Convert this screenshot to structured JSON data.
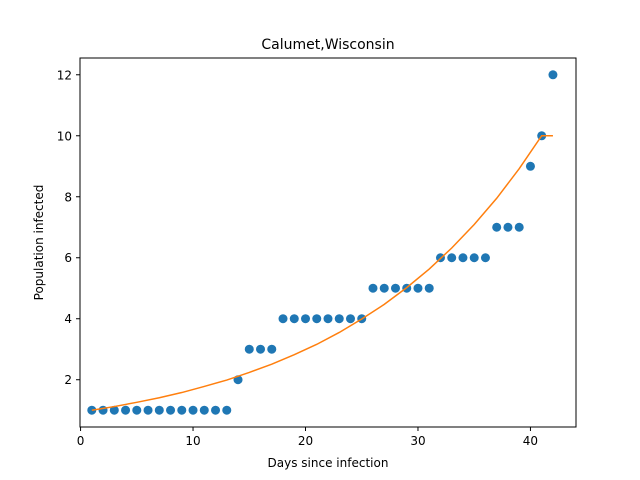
{
  "chart_data": {
    "type": "scatter",
    "title": "Calumet,Wisconsin",
    "xlabel": "Days since infection",
    "ylabel": "Population infected",
    "xlim": [
      -0.05,
      44.05
    ],
    "ylim": [
      0.45,
      12.55
    ],
    "xticks": [
      0,
      10,
      20,
      30,
      40
    ],
    "yticks": [
      2,
      4,
      6,
      8,
      10,
      12
    ],
    "grid": false,
    "series": [
      {
        "kind": "scatter",
        "color": "#1f77b4",
        "x": [
          1,
          2,
          3,
          4,
          5,
          6,
          7,
          8,
          9,
          10,
          11,
          12,
          13,
          14,
          15,
          16,
          17,
          18,
          19,
          20,
          21,
          22,
          23,
          24,
          25,
          26,
          27,
          28,
          29,
          30,
          31,
          32,
          33,
          34,
          35,
          36,
          37,
          38,
          39,
          40,
          41,
          42
        ],
        "y": [
          1,
          1,
          1,
          1,
          1,
          1,
          1,
          1,
          1,
          1,
          1,
          1,
          1,
          2,
          3,
          3,
          3,
          4,
          4,
          4,
          4,
          4,
          4,
          4,
          4,
          5,
          5,
          5,
          5,
          5,
          5,
          6,
          6,
          6,
          6,
          6,
          7,
          7,
          7,
          9,
          10,
          12
        ]
      },
      {
        "kind": "line",
        "color": "#ff7f0e",
        "x": [
          1,
          3,
          5,
          7,
          9,
          11,
          13,
          15,
          17,
          19,
          21,
          23,
          25,
          27,
          29,
          31,
          33,
          35,
          37,
          39,
          41,
          42
        ],
        "y": [
          1.0,
          1.12,
          1.26,
          1.41,
          1.58,
          1.78,
          1.99,
          2.24,
          2.51,
          2.82,
          3.16,
          3.55,
          3.99,
          4.47,
          5.02,
          5.63,
          6.32,
          7.09,
          7.95,
          8.92,
          10.0,
          10.0
        ]
      }
    ]
  }
}
